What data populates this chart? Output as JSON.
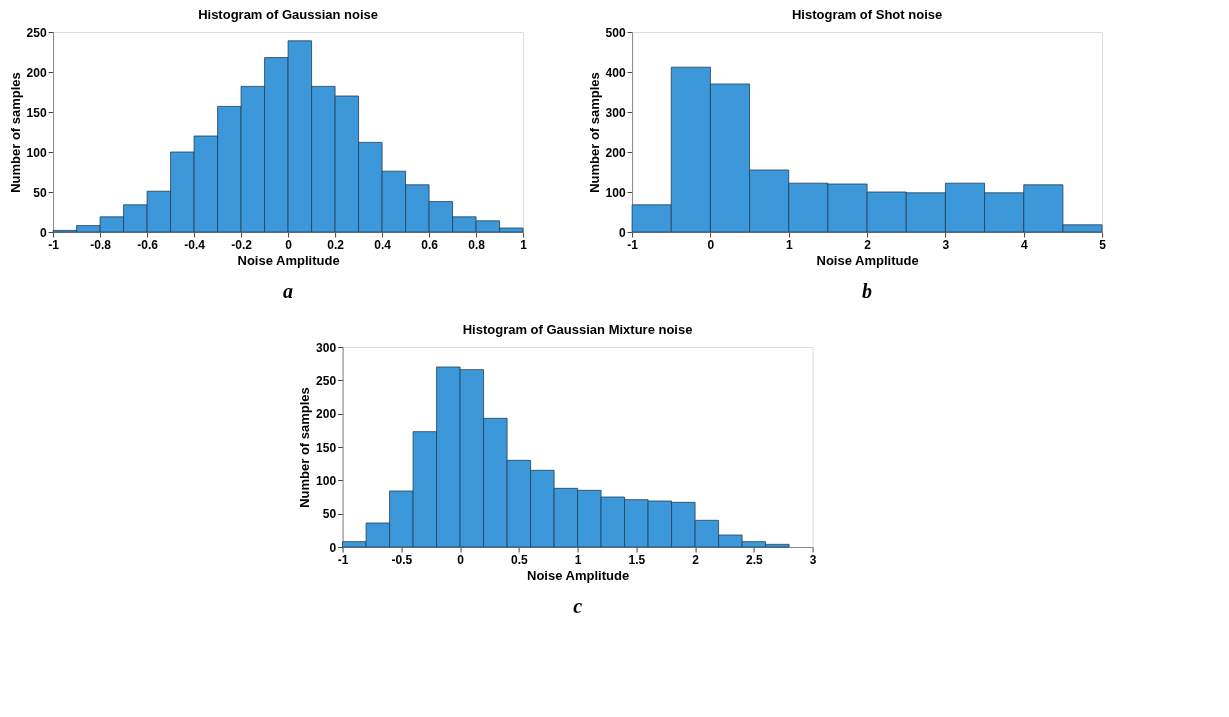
{
  "chart_data": [
    {
      "type": "histogram",
      "title": "Histogram of Gaussian noise",
      "xlabel": "Noise Amplitude",
      "ylabel": "Number of samples",
      "color": "#3d98d9",
      "grid": false,
      "bins": [
        -1,
        -0.9,
        -0.8,
        -0.7,
        -0.6,
        -0.5,
        -0.4,
        -0.3,
        -0.2,
        -0.1,
        0,
        0.1,
        0.2,
        0.3,
        0.4,
        0.5,
        0.6,
        0.7,
        0.8,
        0.9,
        1
      ],
      "values": [
        2,
        8,
        19,
        34,
        51,
        100,
        120,
        157,
        182,
        218,
        239,
        182,
        170,
        112,
        76,
        59,
        38,
        19,
        14,
        5
      ],
      "xlim": [
        -1,
        1
      ],
      "xticks": [
        -1,
        -0.8,
        -0.6,
        -0.4,
        -0.2,
        0,
        0.2,
        0.4,
        0.6,
        0.8,
        1
      ],
      "ylim": [
        0,
        250
      ],
      "yticks": [
        0,
        50,
        100,
        150,
        200,
        250
      ],
      "annotations": [
        "a"
      ]
    },
    {
      "type": "histogram",
      "title": "Histogram of Shot noise",
      "xlabel": "Noise Amplitude",
      "ylabel": "Number of samples",
      "color": "#3d98d9",
      "grid": false,
      "bins": [
        -1,
        -0.5,
        0,
        0.5,
        1,
        1.5,
        2,
        2.5,
        3,
        3.5,
        4,
        4.5,
        5
      ],
      "values": [
        68,
        412,
        370,
        155,
        122,
        120,
        100,
        98,
        122,
        98,
        118,
        18
      ],
      "xlim": [
        -1,
        5
      ],
      "xticks": [
        -1,
        0,
        1,
        2,
        3,
        4,
        5
      ],
      "ylim": [
        0,
        500
      ],
      "yticks": [
        0,
        100,
        200,
        300,
        400,
        500
      ],
      "annotations": [
        "b"
      ]
    },
    {
      "type": "histogram",
      "title": "Histogram of Gaussian Mixture noise",
      "xlabel": "Noise Amplitude",
      "ylabel": "Number of samples",
      "color": "#3d98d9",
      "grid": false,
      "bins": [
        -1,
        -0.8,
        -0.6,
        -0.4,
        -0.2,
        0,
        0.2,
        0.4,
        0.6,
        0.8,
        1,
        1.2,
        1.4,
        1.6,
        1.8,
        2,
        2.2,
        2.4,
        2.6,
        2.8
      ],
      "values": [
        8,
        36,
        84,
        173,
        270,
        266,
        193,
        130,
        115,
        88,
        85,
        75,
        71,
        69,
        67,
        40,
        18,
        8,
        4
      ],
      "xlim": [
        -1,
        3
      ],
      "xticks": [
        -1,
        -0.5,
        0,
        0.5,
        1,
        1.5,
        2,
        2.5,
        3
      ],
      "ylim": [
        0,
        300
      ],
      "yticks": [
        0,
        50,
        100,
        150,
        200,
        250,
        300
      ],
      "annotations": [
        "c"
      ]
    }
  ]
}
